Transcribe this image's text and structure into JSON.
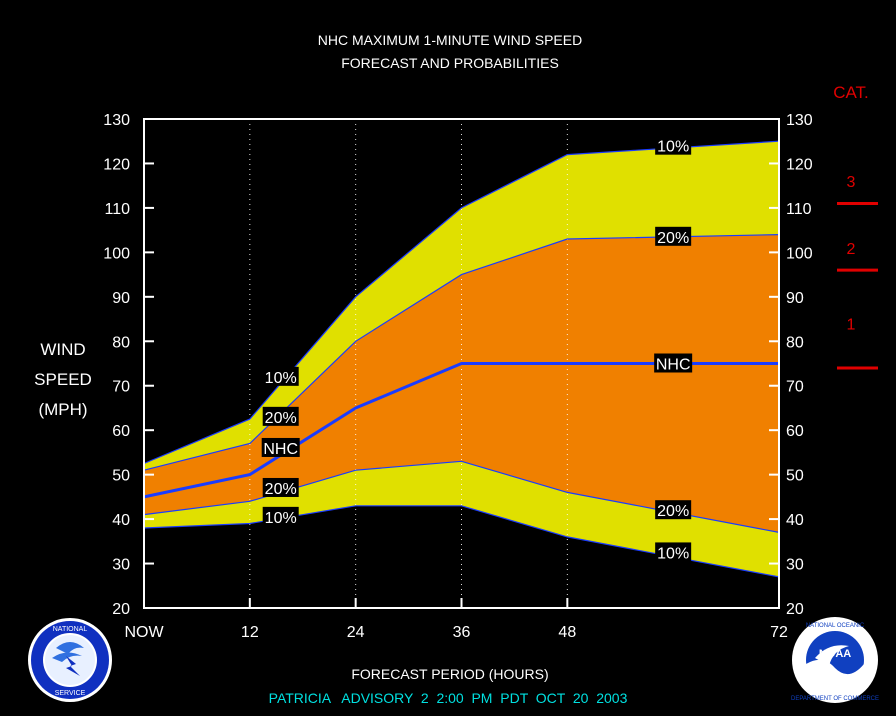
{
  "chart_data": {
    "type": "area",
    "title": "NHC MAXIMUM 1-MINUTE WIND SPEED",
    "subtitle": "FORECAST AND PROBABILITIES",
    "xlabel": "FORECAST PERIOD (HOURS)",
    "ylabel_lines": [
      "WIND",
      "SPEED",
      "(MPH)"
    ],
    "footer": "PATRICIA   ADVISORY  2  2:00  PM  PDT  OCT  20  2003",
    "xlim": [
      0,
      72
    ],
    "ylim": [
      20,
      130
    ],
    "x_ticks": [
      0,
      12,
      24,
      36,
      48,
      72
    ],
    "x_tick_labels": [
      "NOW",
      "12",
      "24",
      "36",
      "48",
      "72"
    ],
    "y_ticks": [
      20,
      30,
      40,
      50,
      60,
      70,
      80,
      90,
      100,
      110,
      120,
      130
    ],
    "y_tick_labels": [
      "20",
      "30",
      "40",
      "50",
      "60",
      "70",
      "80",
      "90",
      "100",
      "110",
      "120",
      "130"
    ],
    "x": [
      0,
      12,
      24,
      36,
      48,
      72
    ],
    "series": [
      {
        "name": "10%",
        "role": "upper-10",
        "values": [
          52.5,
          62.5,
          90,
          110,
          122,
          125
        ]
      },
      {
        "name": "20%",
        "role": "upper-20",
        "values": [
          51,
          57,
          80,
          95,
          103,
          104
        ]
      },
      {
        "name": "NHC",
        "role": "forecast",
        "values": [
          45,
          50,
          65,
          75,
          75,
          75
        ]
      },
      {
        "name": "20%",
        "role": "lower-20",
        "values": [
          41,
          44,
          51,
          53,
          46,
          37
        ]
      },
      {
        "name": "10%",
        "role": "lower-10",
        "values": [
          38,
          39,
          43,
          43,
          36,
          27
        ]
      }
    ],
    "band_labels": [
      {
        "text": "10%",
        "x": 60,
        "y": 124
      },
      {
        "text": "20%",
        "x": 60,
        "y": 103.5
      },
      {
        "text": "NHC",
        "x": 60,
        "y": 75
      },
      {
        "text": "20%",
        "x": 60,
        "y": 42
      },
      {
        "text": "10%",
        "x": 60,
        "y": 32.5
      },
      {
        "text": "10%",
        "x": 15.5,
        "y": 72
      },
      {
        "text": "20%",
        "x": 15.5,
        "y": 63
      },
      {
        "text": "NHC",
        "x": 15.5,
        "y": 56
      },
      {
        "text": "20%",
        "x": 15.5,
        "y": 47
      },
      {
        "text": "10%",
        "x": 15.5,
        "y": 40.5
      }
    ],
    "category_scale": {
      "title": "CAT.",
      "categories": [
        {
          "label": "1",
          "y": 84
        },
        {
          "label": "2",
          "y": 101
        },
        {
          "label": "3",
          "y": 116
        }
      ],
      "thresholds": [
        74,
        96,
        111
      ]
    },
    "colors": {
      "background": "#000000",
      "outer_band": "#e0e000",
      "inner_band": "#f08000",
      "forecast_line": "#1a3cff",
      "axis": "#ffffff",
      "category": "#e00000",
      "footer": "#00e0e0"
    },
    "grid": "vertical-dotted"
  },
  "logos": {
    "left": {
      "icon": "nws-logo-icon",
      "text": "NATIONAL WEATHER SERVICE"
    },
    "right": {
      "icon": "noaa-logo-icon",
      "text": "NOAA"
    }
  }
}
